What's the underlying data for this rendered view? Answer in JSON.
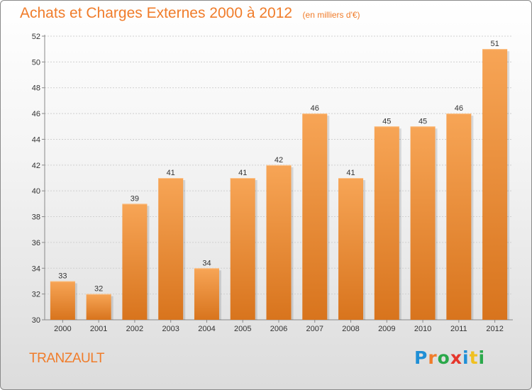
{
  "header": {
    "title": "Achats et Charges Externes 2000 à 2012",
    "subtitle": "(en milliers d'€)"
  },
  "footer": {
    "place_name": "TRANZAULT",
    "logo_text": "Proxiti",
    "logo_colors": [
      "#1f8fd6",
      "#f07c2a",
      "#2aa84a",
      "#e5362c",
      "#1f8fd6",
      "#f0c020",
      "#2aa84a"
    ]
  },
  "colors": {
    "bar_light": "#f7a556",
    "bar_dark": "#d8741d",
    "accent": "#f07c2a"
  },
  "chart_data": {
    "type": "bar",
    "title": "Achats et Charges Externes 2000 à 2012",
    "subtitle": "(en milliers d'€)",
    "categories": [
      "2000",
      "2001",
      "2002",
      "2003",
      "2004",
      "2005",
      "2006",
      "2007",
      "2008",
      "2009",
      "2010",
      "2011",
      "2012"
    ],
    "values": [
      33,
      32,
      39,
      41,
      34,
      41,
      42,
      46,
      41,
      45,
      45,
      46,
      51
    ],
    "ylim": [
      30,
      52
    ],
    "yticks": [
      30,
      32,
      34,
      36,
      38,
      40,
      42,
      44,
      46,
      48,
      50,
      52
    ],
    "grid": true,
    "xlabel": "",
    "ylabel": ""
  }
}
